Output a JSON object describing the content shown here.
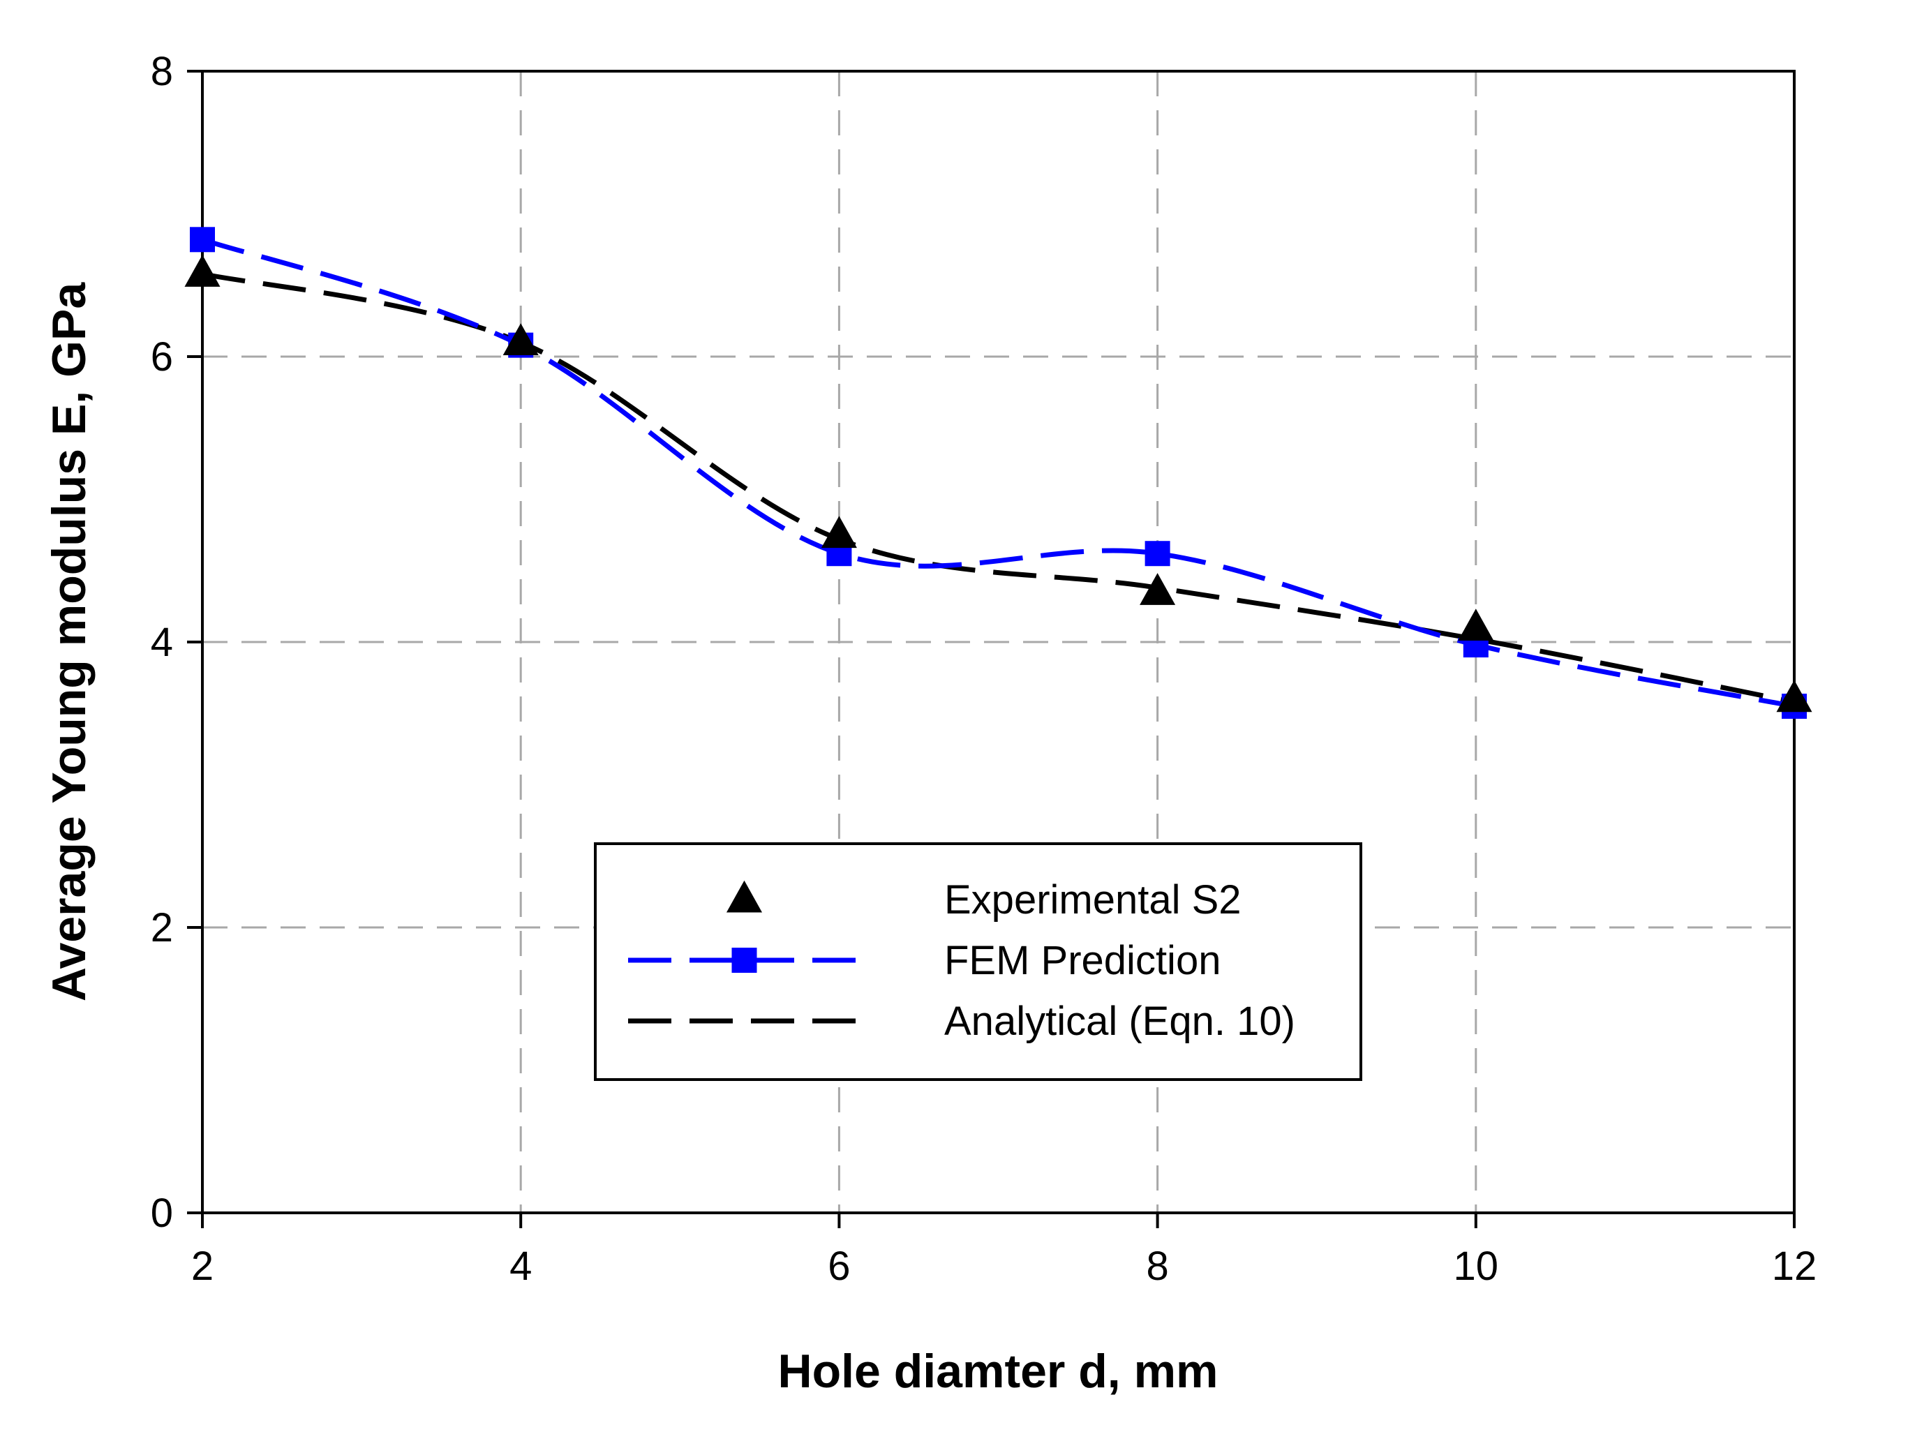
{
  "chart_data": {
    "type": "line",
    "title": "",
    "xlabel": "Hole diamter d, mm",
    "ylabel": "Average Young modulus E, GPa",
    "x": [
      2,
      4,
      6,
      8,
      10,
      12
    ],
    "xlim": [
      2,
      12
    ],
    "ylim": [
      0,
      8
    ],
    "xticks": [
      2,
      4,
      6,
      8,
      10,
      12
    ],
    "yticks": [
      0,
      2,
      4,
      6,
      8
    ],
    "grid": true,
    "legend_position": "center-bottom",
    "series": [
      {
        "name": "Experimental S2",
        "style": "markers-only",
        "marker": "triangle",
        "color": "#000000",
        "values": [
          6.58,
          6.1,
          4.75,
          4.35,
          4.1,
          3.6
        ]
      },
      {
        "name": "FEM Prediction",
        "style": "dashed-line-markers",
        "marker": "square",
        "color": "#0000ff",
        "values": [
          6.82,
          6.08,
          4.62,
          4.62,
          3.98,
          3.55
        ]
      },
      {
        "name": "Analytical (Eqn. 10)",
        "style": "dashed-line",
        "marker": "none",
        "color": "#000000",
        "values": [
          6.58,
          6.1,
          4.72,
          4.38,
          4.02,
          3.58
        ]
      }
    ]
  }
}
